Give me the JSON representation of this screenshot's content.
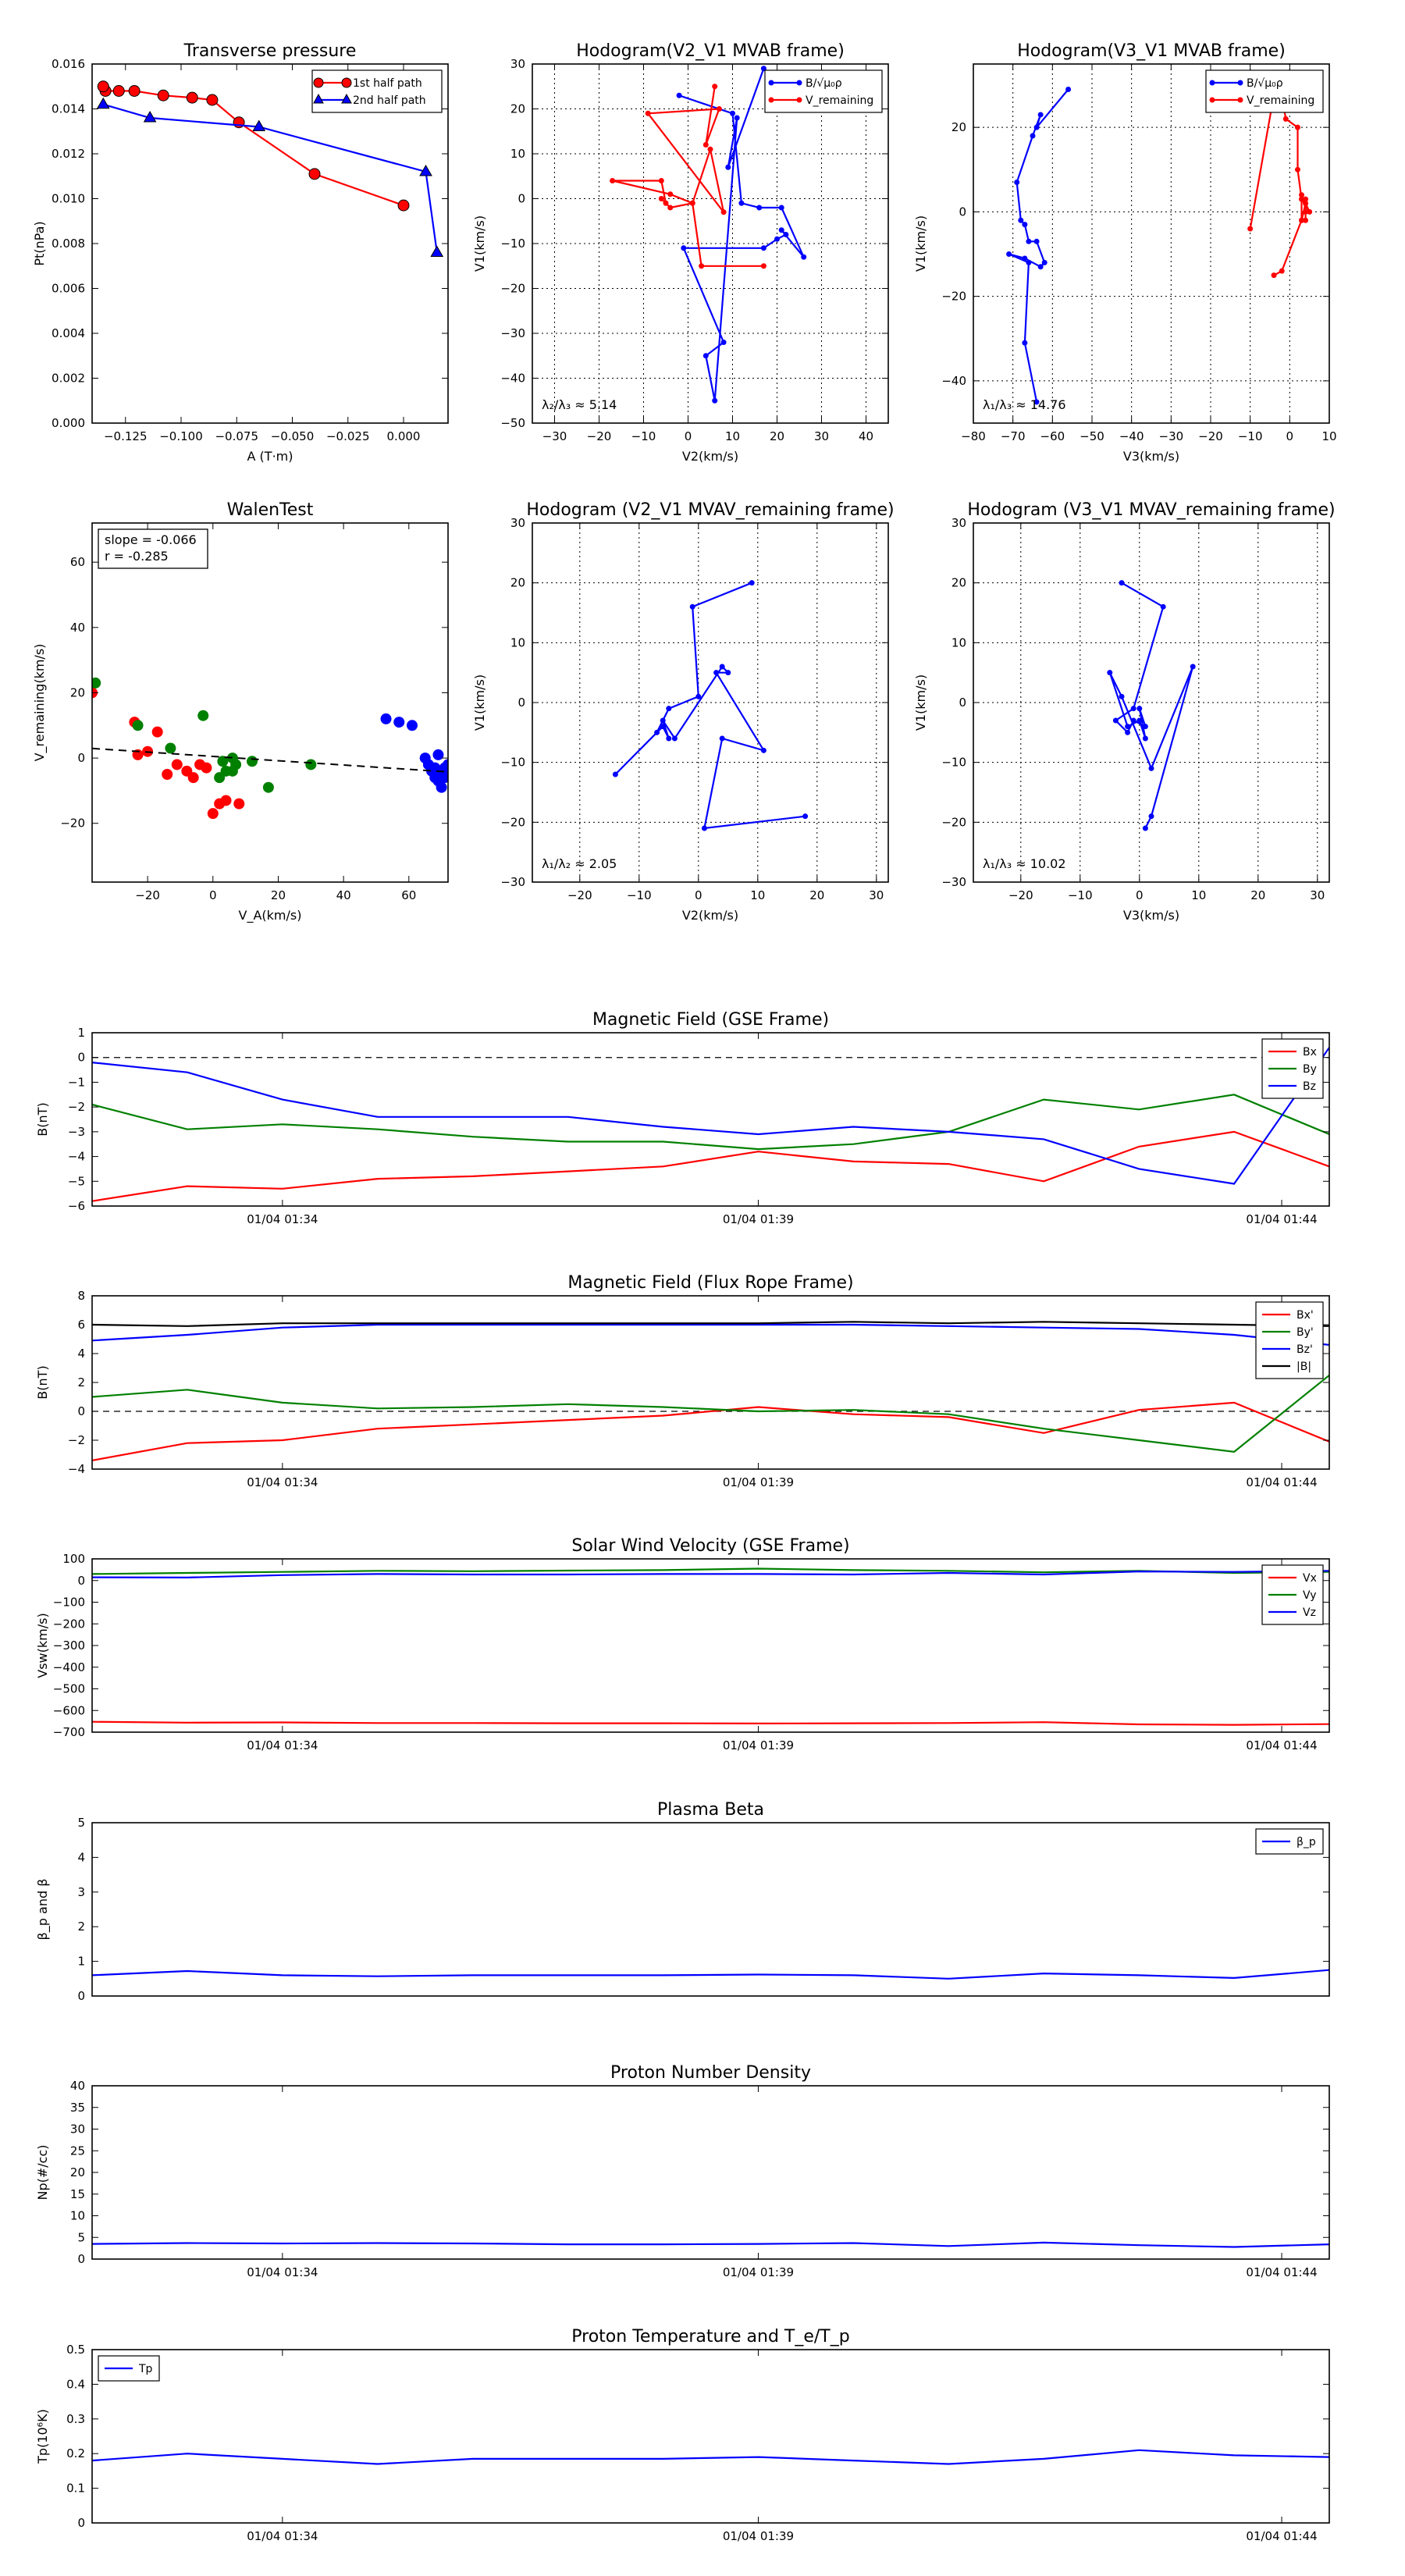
{
  "figure": {
    "colors": {
      "red": "#ff0000",
      "blue": "#0000ff",
      "green": "#008000",
      "black": "#000000"
    }
  },
  "chart_data": [
    {
      "id": "pt",
      "type": "line",
      "title": "Transverse pressure",
      "xlabel": "A (T·m)",
      "ylabel": "Pt(nPa)",
      "xlim": [
        -0.14,
        0.02
      ],
      "ylim": [
        0.0,
        0.016
      ],
      "xticks": [
        -0.125,
        -0.1,
        -0.075,
        -0.05,
        -0.025,
        0.0
      ],
      "xticklabels": [
        "−0.125",
        "−0.100",
        "−0.075",
        "−0.050",
        "−0.025",
        "0.000"
      ],
      "yticks": [
        0.0,
        0.002,
        0.004,
        0.006,
        0.008,
        0.01,
        0.012,
        0.014,
        0.016
      ],
      "yticklabels": [
        "0.000",
        "0.002",
        "0.004",
        "0.006",
        "0.008",
        "0.010",
        "0.012",
        "0.014",
        "0.016"
      ],
      "grid": false,
      "legend": "top-right",
      "series": [
        {
          "name": "1st half path",
          "color": "#ff0000",
          "marker": "circle",
          "x": [
            0.0,
            -0.04,
            -0.074,
            -0.086,
            -0.095,
            -0.108,
            -0.121,
            -0.128,
            -0.134,
            -0.135
          ],
          "y": [
            0.0097,
            0.0111,
            0.0134,
            0.0144,
            0.0145,
            0.0146,
            0.0148,
            0.0148,
            0.0148,
            0.015
          ]
        },
        {
          "name": "2nd half path",
          "color": "#0000ff",
          "marker": "triangle",
          "x": [
            -0.135,
            -0.114,
            -0.065,
            0.01,
            0.015
          ],
          "y": [
            0.0142,
            0.0136,
            0.0132,
            0.0112,
            0.0076
          ]
        }
      ]
    },
    {
      "id": "h21",
      "type": "line",
      "title": "Hodogram(V2_V1 MVAB frame)",
      "xlabel": "V2(km/s)",
      "ylabel": "V1(km/s)",
      "xlim": [
        -35,
        45
      ],
      "ylim": [
        -50,
        30
      ],
      "xticks": [
        -30,
        -20,
        -10,
        0,
        10,
        20,
        30,
        40
      ],
      "yticks": [
        -50,
        -40,
        -30,
        -20,
        -10,
        0,
        10,
        20,
        30
      ],
      "grid": true,
      "legend": "top-right",
      "annotation": "λ₂/λ₃ ≈ 5.14",
      "series": [
        {
          "name": "B/√μ₀ρ",
          "color": "#0000ff",
          "marker": "dot",
          "x": [
            17,
            9,
            11,
            6,
            4,
            8,
            -1,
            17,
            20,
            22,
            21,
            26,
            21,
            16,
            12,
            10,
            -2
          ],
          "y": [
            29,
            7,
            18,
            -45,
            -35,
            -32,
            -11,
            -11,
            -9,
            -8,
            -7,
            -13,
            -2,
            -2,
            -1,
            19,
            23
          ]
        },
        {
          "name": "V_remaining",
          "color": "#ff0000",
          "marker": "dot",
          "x": [
            6,
            4,
            7,
            -9,
            8,
            5,
            1,
            -4,
            -17,
            -6,
            -5,
            -6,
            -4,
            1,
            3,
            17
          ],
          "y": [
            25,
            12,
            20,
            19,
            -3,
            11,
            -1,
            1,
            4,
            4,
            -1,
            0,
            -2,
            -1,
            -15,
            -15
          ]
        }
      ]
    },
    {
      "id": "h31",
      "type": "line",
      "title": "Hodogram(V3_V1 MVAB frame)",
      "xlabel": "V3(km/s)",
      "ylabel": "V1(km/s)",
      "xlim": [
        -80,
        10
      ],
      "ylim": [
        -50,
        35
      ],
      "xticks": [
        -80,
        -70,
        -60,
        -50,
        -40,
        -30,
        -20,
        -10,
        0,
        10
      ],
      "yticks": [
        -40,
        -20,
        0,
        20
      ],
      "grid": true,
      "legend": "top-right",
      "annotation": "λ₁/λ₃ ≈ 14.76",
      "series": [
        {
          "name": "B/√μ₀ρ",
          "color": "#0000ff",
          "marker": "dot",
          "x": [
            -56,
            -64,
            -63,
            -65,
            -69,
            -68,
            -67,
            -66,
            -64,
            -62,
            -63,
            -67,
            -71,
            -66,
            -67,
            -64
          ],
          "y": [
            29,
            20,
            23,
            18,
            7,
            -2,
            -3,
            -7,
            -7,
            -12,
            -13,
            -11,
            -10,
            -12,
            -31,
            -45
          ]
        },
        {
          "name": "V_remaining",
          "color": "#ff0000",
          "marker": "dot",
          "x": [
            -10,
            -3,
            -1,
            2,
            2,
            3,
            4,
            4,
            4,
            3,
            4,
            3,
            5,
            3,
            3,
            -2,
            -4
          ],
          "y": [
            -4,
            33,
            22,
            20,
            10,
            3,
            3,
            0,
            -2,
            -2,
            2,
            4,
            0,
            3,
            -2,
            -14,
            -15
          ]
        }
      ]
    },
    {
      "id": "walen",
      "type": "scatter",
      "title": "WalenTest",
      "xlabel": "V_A(km/s)",
      "ylabel": "V_remaining(km/s)",
      "xlim": [
        -37,
        72
      ],
      "ylim": [
        -38,
        72
      ],
      "xticks": [
        -20,
        0,
        20,
        40,
        60
      ],
      "yticks": [
        -20,
        0,
        20,
        40,
        60
      ],
      "grid": false,
      "annotation": "slope = -0.066\nr = -0.285",
      "fit": {
        "slope": -0.066,
        "intercept": 0.5,
        "x": [
          -37,
          72
        ]
      },
      "series": [
        {
          "color": "#ff0000",
          "x": [
            -37,
            -24,
            -23,
            -20,
            -17,
            -14,
            -11,
            -8,
            -6,
            -4,
            -2,
            0,
            2,
            4,
            8
          ],
          "y": [
            20,
            11,
            1,
            2,
            8,
            -5,
            -2,
            -4,
            -6,
            -2,
            -3,
            -17,
            -14,
            -13,
            -14
          ]
        },
        {
          "color": "#008000",
          "x": [
            -36,
            -23,
            -13,
            -3,
            2,
            3,
            4,
            6,
            6,
            7,
            12,
            17,
            30
          ],
          "y": [
            23,
            10,
            3,
            13,
            -6,
            -1,
            -4,
            -4,
            0,
            -2,
            -1,
            -9,
            -2
          ]
        },
        {
          "color": "#0000ff",
          "x": [
            53,
            57,
            61,
            65,
            66,
            67,
            68,
            68,
            69,
            69,
            70,
            70,
            71,
            71,
            72
          ],
          "y": [
            12,
            11,
            10,
            0,
            -2,
            -4,
            -3,
            -6,
            1,
            -7,
            -5,
            -9,
            -3,
            -6,
            -2
          ]
        }
      ]
    },
    {
      "id": "h21r",
      "type": "line",
      "title": "Hodogram (V2_V1 MVAV_remaining frame)",
      "xlabel": "V2(km/s)",
      "ylabel": "V1(km/s)",
      "xlim": [
        -28,
        32
      ],
      "ylim": [
        -30,
        30
      ],
      "xticks": [
        -20,
        -10,
        0,
        10,
        20,
        30
      ],
      "yticks": [
        -30,
        -20,
        -10,
        0,
        10,
        20,
        30
      ],
      "grid": true,
      "annotation": "λ₁/λ₂ ≈ 2.05",
      "series": [
        {
          "color": "#0000ff",
          "marker": "dot",
          "x": [
            9,
            -1,
            0,
            -5,
            -7,
            -14,
            -6,
            -5,
            -6,
            -4,
            4,
            5,
            3,
            11,
            4,
            1,
            18
          ],
          "y": [
            20,
            16,
            1,
            -1,
            -5,
            -12,
            -4,
            -6,
            -3,
            -6,
            6,
            5,
            5,
            -8,
            -6,
            -21,
            -19
          ]
        }
      ]
    },
    {
      "id": "h31r",
      "type": "line",
      "title": "Hodogram (V3_V1 MVAV_remaining frame)",
      "xlabel": "V3(km/s)",
      "ylabel": "V1(km/s)",
      "xlim": [
        -28,
        32
      ],
      "ylim": [
        -30,
        30
      ],
      "xticks": [
        -20,
        -10,
        0,
        10,
        20,
        30
      ],
      "yticks": [
        -30,
        -20,
        -10,
        0,
        10,
        20,
        30
      ],
      "grid": true,
      "annotation": "λ₁/λ₃ ≈ 10.02",
      "series": [
        {
          "color": "#0000ff",
          "marker": "dot",
          "x": [
            -3,
            4,
            -1,
            -4,
            -2,
            -1,
            1,
            0,
            1,
            0,
            -2,
            -5,
            -3,
            2,
            9,
            2,
            1
          ],
          "y": [
            20,
            16,
            -1,
            -3,
            -5,
            -3,
            -4,
            -1,
            -6,
            -3,
            -4,
            5,
            1,
            -11,
            6,
            -19,
            -21
          ]
        }
      ]
    },
    {
      "id": "bgse",
      "type": "line",
      "title": "Magnetic Field (GSE Frame)",
      "ylabel": "B(nT)",
      "ylim": [
        -6,
        1
      ],
      "yticks": [
        -6,
        -5,
        -4,
        -3,
        -2,
        -1,
        0,
        1
      ],
      "xlim": [
        0,
        13
      ],
      "xticks": [
        2,
        7,
        12.5
      ],
      "xticklabels": [
        "01/04 01:34",
        "01/04 01:39",
        "01/04 01:44"
      ],
      "zero_line": true,
      "legend": "top-right",
      "x": [
        0,
        1,
        2,
        3,
        4,
        5,
        6,
        7,
        8,
        9,
        10,
        11,
        12,
        13
      ],
      "series": [
        {
          "name": "Bx",
          "color": "#ff0000",
          "values": [
            -5.8,
            -5.2,
            -5.3,
            -4.9,
            -4.8,
            -4.6,
            -4.4,
            -3.8,
            -4.2,
            -4.3,
            -5.0,
            -3.6,
            -3.0,
            -4.4
          ]
        },
        {
          "name": "By",
          "color": "#008000",
          "values": [
            -1.9,
            -2.9,
            -2.7,
            -2.9,
            -3.2,
            -3.4,
            -3.4,
            -3.7,
            -3.5,
            -3.0,
            -1.7,
            -2.1,
            -1.5,
            -3.1
          ]
        },
        {
          "name": "Bz",
          "color": "#0000ff",
          "values": [
            -0.2,
            -0.6,
            -1.7,
            -2.4,
            -2.4,
            -2.4,
            -2.8,
            -3.1,
            -2.8,
            -3.0,
            -3.3,
            -4.5,
            -5.1,
            0.4
          ]
        }
      ]
    },
    {
      "id": "bfr",
      "type": "line",
      "title": "Magnetic Field (Flux Rope Frame)",
      "ylabel": "B(nT)",
      "ylim": [
        -4,
        8
      ],
      "yticks": [
        -4,
        -2,
        0,
        2,
        4,
        6,
        8
      ],
      "xlim": [
        0,
        13
      ],
      "xticks": [
        2,
        7,
        12.5
      ],
      "xticklabels": [
        "01/04 01:34",
        "01/04 01:39",
        "01/04 01:44"
      ],
      "zero_line": true,
      "legend": "top-right",
      "x": [
        0,
        1,
        2,
        3,
        4,
        5,
        6,
        7,
        8,
        9,
        10,
        11,
        12,
        13
      ],
      "series": [
        {
          "name": "Bx'",
          "color": "#ff0000",
          "values": [
            -3.4,
            -2.2,
            -2.0,
            -1.2,
            -0.9,
            -0.6,
            -0.3,
            0.3,
            -0.2,
            -0.4,
            -1.5,
            0.1,
            0.6,
            -2.1
          ]
        },
        {
          "name": "By'",
          "color": "#008000",
          "values": [
            1.0,
            1.5,
            0.6,
            0.2,
            0.3,
            0.5,
            0.3,
            0.0,
            0.1,
            -0.2,
            -1.2,
            -2.0,
            -2.8,
            2.5
          ]
        },
        {
          "name": "Bz'",
          "color": "#0000ff",
          "values": [
            4.9,
            5.3,
            5.8,
            6.0,
            6.0,
            6.0,
            6.0,
            6.0,
            6.0,
            5.9,
            5.8,
            5.7,
            5.3,
            4.6
          ]
        },
        {
          "name": "|B|",
          "color": "#000000",
          "values": [
            6.0,
            5.9,
            6.1,
            6.1,
            6.1,
            6.1,
            6.1,
            6.1,
            6.2,
            6.1,
            6.2,
            6.1,
            6.0,
            5.9
          ]
        }
      ]
    },
    {
      "id": "vsw",
      "type": "line",
      "title": "Solar Wind Velocity (GSE Frame)",
      "ylabel": "Vsw(km/s)",
      "ylim": [
        -700,
        100
      ],
      "yticks": [
        -700,
        -600,
        -500,
        -400,
        -300,
        -200,
        -100,
        0,
        100
      ],
      "yticklabels": [
        "−700",
        "−600",
        "−500",
        "−400",
        "−300",
        "−200",
        "−100",
        "0",
        "100"
      ],
      "xlim": [
        0,
        13
      ],
      "xticks": [
        2,
        7,
        12.5
      ],
      "xticklabels": [
        "01/04 01:34",
        "01/04 01:39",
        "01/04 01:44"
      ],
      "legend": "top-right",
      "x": [
        0,
        1,
        2,
        3,
        4,
        5,
        6,
        7,
        8,
        9,
        10,
        11,
        12,
        13
      ],
      "series": [
        {
          "name": "Vx",
          "color": "#ff0000",
          "values": [
            -652,
            -656,
            -655,
            -658,
            -658,
            -659,
            -659,
            -660,
            -659,
            -658,
            -654,
            -664,
            -666,
            -663
          ]
        },
        {
          "name": "Vy",
          "color": "#008000",
          "values": [
            30,
            35,
            40,
            45,
            43,
            46,
            48,
            55,
            48,
            45,
            38,
            45,
            35,
            40
          ]
        },
        {
          "name": "Vz",
          "color": "#0000ff",
          "values": [
            15,
            14,
            25,
            30,
            28,
            28,
            30,
            30,
            28,
            35,
            28,
            42,
            40,
            45
          ]
        }
      ]
    },
    {
      "id": "beta",
      "type": "line",
      "title": "Plasma Beta",
      "ylabel": "β_p and β",
      "ylim": [
        0,
        5
      ],
      "yticks": [
        0,
        1,
        2,
        3,
        4,
        5
      ],
      "xlim": [
        0,
        13
      ],
      "xticks": [],
      "legend": "top-right",
      "x": [
        0,
        1,
        2,
        3,
        4,
        5,
        6,
        7,
        8,
        9,
        10,
        11,
        12,
        13
      ],
      "series": [
        {
          "name": "β_p",
          "color": "#0000ff",
          "values": [
            0.6,
            0.72,
            0.6,
            0.57,
            0.6,
            0.6,
            0.6,
            0.62,
            0.6,
            0.5,
            0.65,
            0.6,
            0.52,
            0.75
          ]
        }
      ]
    },
    {
      "id": "np",
      "type": "line",
      "title": "Proton Number Density",
      "ylabel": "Np(#/cc)",
      "ylim": [
        0,
        40
      ],
      "yticks": [
        0,
        5,
        10,
        15,
        20,
        25,
        30,
        35,
        40
      ],
      "xlim": [
        0,
        13
      ],
      "xticks": [
        2,
        7,
        12.5
      ],
      "xticklabels": [
        "01/04 01:34",
        "01/04 01:39",
        "01/04 01:44"
      ],
      "x": [
        0,
        1,
        2,
        3,
        4,
        5,
        6,
        7,
        8,
        9,
        10,
        11,
        12,
        13
      ],
      "series": [
        {
          "color": "#0000ff",
          "values": [
            3.5,
            3.7,
            3.6,
            3.7,
            3.6,
            3.4,
            3.4,
            3.5,
            3.7,
            3.0,
            3.8,
            3.2,
            2.8,
            3.4
          ]
        }
      ]
    },
    {
      "id": "tp",
      "type": "line",
      "title": "Proton Temperature and T_e/T_p",
      "ylabel": "Tp(10⁶K)",
      "ylim": [
        0,
        0.5
      ],
      "yticks": [
        0,
        0.1,
        0.2,
        0.3,
        0.4,
        0.5
      ],
      "xlim": [
        0,
        13
      ],
      "xticks": [
        2,
        7,
        12.5
      ],
      "xticklabels": [
        "01/04 01:34",
        "01/04 01:39",
        "01/04 01:44"
      ],
      "legend": "top-left",
      "x": [
        0,
        1,
        2,
        3,
        4,
        5,
        6,
        7,
        8,
        9,
        10,
        11,
        12,
        13
      ],
      "series": [
        {
          "name": "Tp",
          "color": "#0000ff",
          "values": [
            0.18,
            0.2,
            0.185,
            0.17,
            0.185,
            0.185,
            0.185,
            0.19,
            0.18,
            0.17,
            0.185,
            0.21,
            0.195,
            0.19
          ]
        }
      ]
    }
  ]
}
